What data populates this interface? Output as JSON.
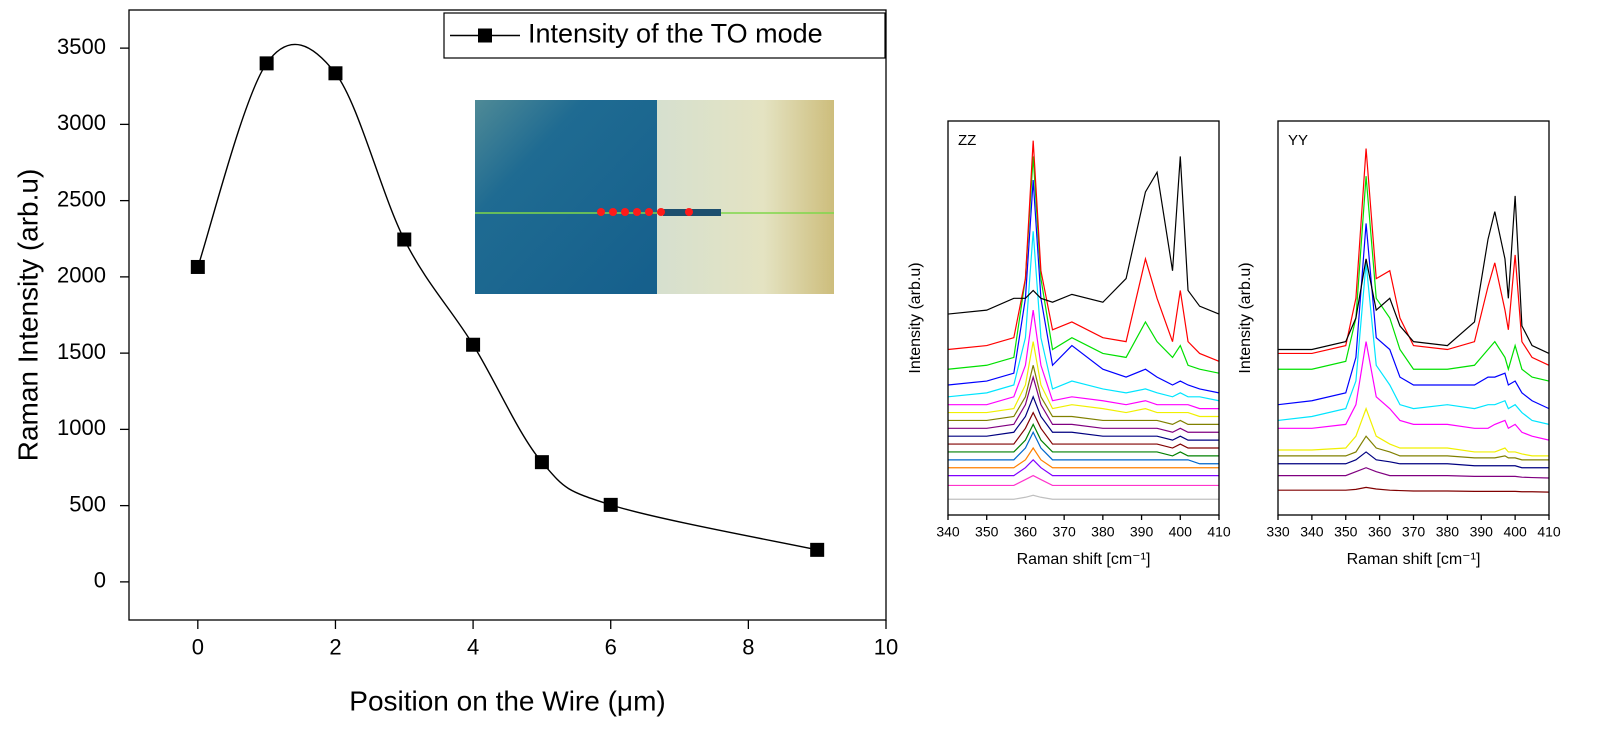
{
  "chart_data": [
    {
      "type": "line",
      "smooth": true,
      "legend": "upper right",
      "xlabel": "Position on the Wire (μm)",
      "ylabel": "Raman Intensity (arb.u)",
      "x": [
        0,
        1,
        2,
        3,
        4,
        5,
        6,
        9
      ],
      "series": [
        {
          "name": "Intensity of the TO mode",
          "color": "#000000",
          "marker": "square",
          "values": [
            2065,
            3400,
            3335,
            2245,
            1555,
            785,
            505,
            210
          ]
        }
      ],
      "xlim": [
        -1,
        10
      ],
      "xticks": [
        0,
        2,
        4,
        6,
        8,
        10
      ],
      "ylim": [
        -250,
        3750
      ],
      "yticks": [
        0,
        500,
        1000,
        1500,
        2000,
        2500,
        3000,
        3500
      ]
    },
    {
      "type": "line",
      "smooth": false,
      "title": "ZZ",
      "xlabel": "Raman shift [cm⁻¹]",
      "ylabel": "Intensity (arb.u)",
      "x": [
        340,
        350,
        357,
        360,
        362,
        364,
        367,
        372,
        380,
        386,
        391,
        394,
        398,
        400,
        402,
        405,
        410
      ],
      "xlim": [
        340,
        410
      ],
      "xticks": [
        340,
        350,
        360,
        370,
        380,
        390,
        400,
        410
      ],
      "ylim": [
        0,
        100
      ],
      "series": [
        {
          "color": "#000000",
          "values": [
            51,
            52,
            55,
            55,
            57,
            55,
            54,
            56,
            54,
            60,
            82,
            87,
            62,
            91,
            57,
            53,
            51
          ]
        },
        {
          "color": "#ff0000",
          "values": [
            42,
            43,
            45,
            60,
            95,
            62,
            47,
            49,
            45,
            44,
            65,
            55,
            44,
            57,
            44,
            41,
            39
          ]
        },
        {
          "color": "#00e000",
          "values": [
            37,
            38,
            40,
            60,
            91,
            60,
            42,
            45,
            41,
            40,
            49,
            44,
            40,
            43,
            38,
            37,
            36
          ]
        },
        {
          "color": "#0000ff",
          "values": [
            33,
            34,
            36,
            55,
            85,
            55,
            38,
            43,
            37,
            35,
            37,
            35,
            33,
            34,
            33,
            32,
            31
          ]
        },
        {
          "color": "#00e5ff",
          "values": [
            30,
            31,
            33,
            45,
            72,
            45,
            32,
            34,
            32,
            31,
            32,
            31,
            30,
            31,
            30,
            30,
            29
          ]
        },
        {
          "color": "#ff00ff",
          "values": [
            28,
            28,
            30,
            38,
            52,
            38,
            29,
            30,
            29,
            28,
            29,
            28,
            28,
            28,
            28,
            27,
            27
          ]
        },
        {
          "color": "#f0f000",
          "values": [
            26,
            26,
            27,
            33,
            44,
            33,
            27,
            28,
            27,
            26,
            27,
            26,
            26,
            26,
            26,
            25,
            25
          ]
        },
        {
          "color": "#808000",
          "values": [
            24,
            24,
            25,
            30,
            38,
            30,
            25,
            25,
            24,
            24,
            24,
            24,
            23,
            24,
            23,
            23,
            23
          ]
        },
        {
          "color": "#800080",
          "values": [
            22,
            22,
            23,
            28,
            35,
            28,
            23,
            23,
            22,
            22,
            22,
            22,
            21,
            22,
            21,
            21,
            21
          ]
        },
        {
          "color": "#000080",
          "values": [
            20,
            20,
            21,
            25,
            30,
            25,
            21,
            21,
            20,
            20,
            20,
            20,
            19,
            20,
            19,
            19,
            19
          ]
        },
        {
          "color": "#800000",
          "values": [
            18,
            18,
            18,
            22,
            26,
            22,
            18,
            18,
            18,
            18,
            18,
            18,
            17,
            18,
            17,
            17,
            17
          ]
        },
        {
          "color": "#008000",
          "values": [
            16,
            16,
            16,
            19,
            23,
            19,
            16,
            16,
            16,
            16,
            16,
            16,
            15,
            16,
            15,
            15,
            15
          ]
        },
        {
          "color": "#0066cc",
          "values": [
            14,
            14,
            14,
            17,
            21,
            17,
            14,
            14,
            14,
            14,
            14,
            14,
            14,
            14,
            14,
            13,
            13
          ]
        },
        {
          "color": "#ff8000",
          "values": [
            12,
            12,
            12,
            14,
            17,
            14,
            12,
            12,
            12,
            12,
            12,
            12,
            12,
            12,
            12,
            12,
            12
          ]
        },
        {
          "color": "#8000ff",
          "values": [
            10,
            10,
            10,
            12,
            14,
            12,
            10,
            10,
            10,
            10,
            10,
            10,
            10,
            10,
            10,
            10,
            10
          ]
        },
        {
          "color": "#ff33cc",
          "values": [
            7.5,
            7.5,
            7.5,
            9,
            10,
            9,
            7.5,
            7.5,
            7.5,
            7.5,
            7.5,
            7.5,
            7.5,
            7.5,
            7.5,
            7.5,
            7.5
          ]
        },
        {
          "color": "#c0c0c0",
          "values": [
            4,
            4,
            4,
            4.5,
            5,
            4.5,
            4,
            4,
            4,
            4,
            4,
            4,
            4,
            4,
            4,
            4,
            4
          ]
        }
      ]
    },
    {
      "type": "line",
      "smooth": false,
      "title": "YY",
      "xlabel": "Raman shift [cm⁻¹]",
      "ylabel": "Intensity (arb.u)",
      "x": [
        330,
        340,
        350,
        353,
        356,
        359,
        363,
        366,
        370,
        380,
        388,
        392,
        394,
        397,
        398,
        400,
        402,
        405,
        410
      ],
      "xlim": [
        330,
        410
      ],
      "xticks": [
        330,
        340,
        350,
        360,
        370,
        380,
        390,
        400,
        410
      ],
      "ylim": [
        0,
        100
      ],
      "series": [
        {
          "color": "#000000",
          "values": [
            42,
            42,
            44,
            50,
            65,
            52,
            55,
            48,
            44,
            43,
            49,
            70,
            77,
            65,
            55,
            81,
            48,
            43,
            41
          ]
        },
        {
          "color": "#ff0000",
          "values": [
            41,
            41,
            43,
            55,
            93,
            60,
            62,
            50,
            43,
            42,
            44,
            58,
            64,
            52,
            47,
            66,
            44,
            40,
            38
          ]
        },
        {
          "color": "#00e000",
          "values": [
            37,
            37,
            39,
            50,
            86,
            55,
            50,
            42,
            37,
            37,
            38,
            42,
            44,
            40,
            37,
            43,
            37,
            35,
            34
          ]
        },
        {
          "color": "#0000ff",
          "values": [
            28,
            29,
            31,
            40,
            74,
            45,
            42,
            35,
            33,
            33,
            33,
            35,
            35,
            36,
            33,
            34,
            31,
            29,
            27
          ]
        },
        {
          "color": "#00e5ff",
          "values": [
            24,
            25,
            27,
            34,
            64,
            38,
            33,
            28,
            27,
            28,
            27,
            28,
            28,
            29,
            27,
            28,
            26,
            24,
            23
          ]
        },
        {
          "color": "#ff00ff",
          "values": [
            22,
            22,
            23,
            28,
            44,
            30,
            27,
            24,
            23,
            23,
            22,
            22,
            23,
            24,
            22,
            23,
            21,
            20,
            19
          ]
        },
        {
          "color": "#f0f000",
          "values": [
            16.5,
            16.5,
            17,
            20,
            27,
            20,
            18,
            17,
            17,
            17,
            16,
            16,
            16,
            17,
            16,
            16,
            15.5,
            15,
            15
          ]
        },
        {
          "color": "#808000",
          "values": [
            15,
            15,
            15,
            16,
            20,
            17,
            16,
            15,
            15,
            15,
            14.5,
            14.5,
            14.5,
            15,
            14.5,
            14.5,
            14,
            14,
            14
          ]
        },
        {
          "color": "#000080",
          "values": [
            13,
            13,
            13,
            14,
            16,
            14,
            13.5,
            13,
            13,
            13,
            12.5,
            12.5,
            12.5,
            12.5,
            12.5,
            12.5,
            12,
            12,
            12
          ]
        },
        {
          "color": "#800080",
          "values": [
            10,
            10,
            10,
            11,
            12,
            11,
            10,
            10,
            10,
            10,
            9.8,
            9.8,
            9.8,
            9.8,
            9.8,
            9.8,
            9.6,
            9.5,
            9.4
          ]
        },
        {
          "color": "#800000",
          "values": [
            6.3,
            6.3,
            6.3,
            6.5,
            7,
            6.6,
            6.3,
            6.2,
            6.1,
            6.1,
            6,
            6,
            6,
            6,
            6,
            6,
            5.9,
            5.9,
            5.8
          ]
        }
      ]
    }
  ]
}
